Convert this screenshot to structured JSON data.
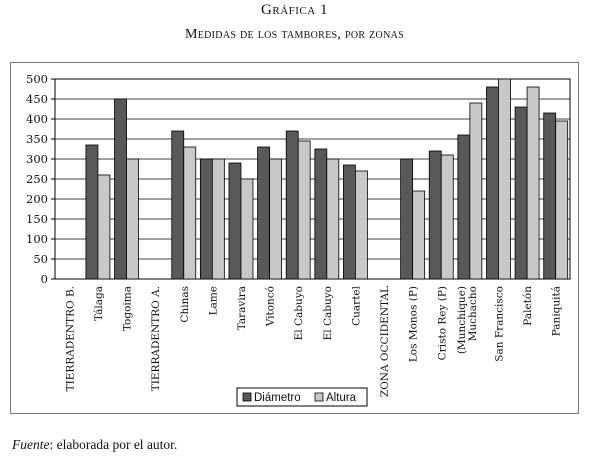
{
  "header": {
    "title": "Gráfica 1",
    "subtitle": "Medidas de los tambores, por zonas"
  },
  "source": {
    "label": "Fuente",
    "text": ": elaborada por el autor."
  },
  "chart_data": {
    "type": "bar",
    "title": "Medidas de los tambores, por zonas",
    "xlabel": "",
    "ylabel": "",
    "ylim": [
      0,
      500
    ],
    "yticks": [
      0,
      50,
      100,
      150,
      200,
      250,
      300,
      350,
      400,
      450,
      500
    ],
    "grid": "horizontal",
    "legend_position": "bottom-center",
    "categories": [
      "TIERRADENTRO B.",
      "Tálaga",
      "Togoima",
      "TIERRADENTRO A.",
      "Chinas",
      "Lame",
      "Taravira",
      "Vitoncó",
      "El Cabuyo",
      "El Cabuyo",
      "Cuartel",
      "ZONA OCCIDENTAL",
      "Los Monos (P)",
      "Cristo Rey (P)",
      "(Munchique) Muchacho",
      "San Francisco",
      "Paletón",
      "Paniquitá"
    ],
    "series": [
      {
        "name": "Diámetro",
        "color": "#595959",
        "values": [
          null,
          335,
          450,
          null,
          370,
          300,
          290,
          330,
          370,
          325,
          285,
          null,
          300,
          320,
          360,
          480,
          430,
          415
        ]
      },
      {
        "name": "Altura",
        "color": "#c8c8c8",
        "values": [
          null,
          260,
          300,
          null,
          330,
          300,
          250,
          300,
          345,
          300,
          270,
          null,
          220,
          310,
          440,
          500,
          480,
          395
        ]
      }
    ]
  }
}
